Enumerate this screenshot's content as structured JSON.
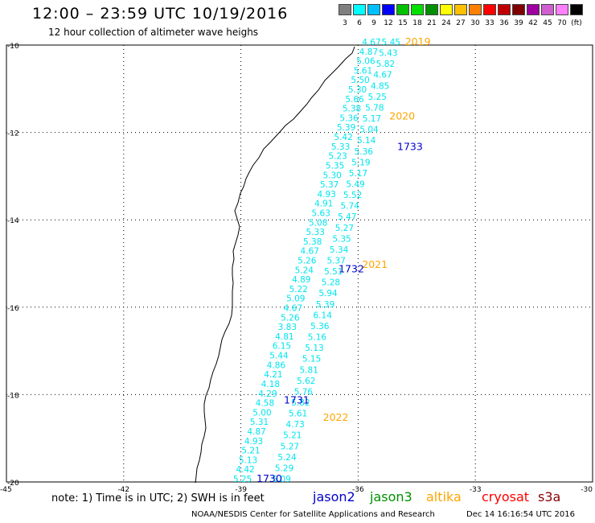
{
  "header": {
    "title": "12:00 – 23:59 UTC 10/19/2016",
    "subtitle": "12 hour collection of altimeter wave heighs"
  },
  "legend": {
    "colors": [
      "#808080",
      "#00ffff",
      "#00c0ff",
      "#0000ff",
      "#00c000",
      "#00e000",
      "#009000",
      "#ffff00",
      "#ffc000",
      "#ff8000",
      "#ff0000",
      "#c00000",
      "#800000",
      "#a000a0",
      "#d060d0",
      "#ff80ff",
      "#000000"
    ],
    "labels": [
      "3",
      "6",
      "9",
      "12",
      "15",
      "18",
      "21",
      "24",
      "27",
      "30",
      "33",
      "36",
      "39",
      "42",
      "45",
      "70",
      "(ft)"
    ]
  },
  "axes": {
    "lat_labels": [
      "-10",
      "-12",
      "-14",
      "-16",
      "-18",
      "-20"
    ],
    "lon_labels": [
      "-45",
      "-42",
      "-39",
      "-36",
      "-33",
      "-30"
    ]
  },
  "map_data": {
    "type": "altimeter_track_map",
    "lon_range": [
      -45,
      -30
    ],
    "lat_range": [
      -20,
      -10
    ],
    "track_color": "#00e5ee",
    "time_labels": [
      {
        "text": "2019",
        "color": "#ffa500",
        "lon": -34.8,
        "lat": -10.0
      },
      {
        "text": "2020",
        "color": "#ffa500",
        "lon": -35.2,
        "lat": -11.7
      },
      {
        "text": "1733",
        "color": "#0000cc",
        "lon": -35.0,
        "lat": -12.4
      },
      {
        "text": "2021",
        "color": "#ffa500",
        "lon": -35.9,
        "lat": -15.1
      },
      {
        "text": "1732",
        "color": "#0000cc",
        "lon": -36.5,
        "lat": -15.2
      },
      {
        "text": "1731",
        "color": "#0000cc",
        "lon": -37.9,
        "lat": -18.2
      },
      {
        "text": "2022",
        "color": "#ffa500",
        "lon": -36.9,
        "lat": -18.6
      },
      {
        "text": "1730",
        "color": "#0000cc",
        "lon": -38.6,
        "lat": -20.0
      }
    ],
    "track_a_start": {
      "lon": -35.9,
      "lat": -10.0
    },
    "track_a_end": {
      "lon": -39.2,
      "lat": -20.0
    },
    "track_a_values": [
      "4.67",
      "4.87",
      "5.06",
      "5.61",
      "5.50",
      "5.30",
      "5.66",
      "5.38",
      "5.36",
      "5.39",
      "5.42",
      "5.33",
      "5.23",
      "5.35",
      "5.30",
      "5.37",
      "4.93",
      "4.91",
      "5.63",
      "5.08",
      "5.33",
      "5.38",
      "4.67",
      "5.26",
      "5.24",
      "4.89",
      "5.22",
      "5.09",
      "4.67",
      "5.26",
      "3.83",
      "4.81",
      "6.15",
      "5.44",
      "4.86",
      "4.21",
      "4.18",
      "4.29",
      "4.58",
      "5.00",
      "5.31",
      "4.87",
      "4.93",
      "5.21",
      "5.13",
      "4.42",
      "5.25"
    ],
    "track_b_start": {
      "lon": -35.4,
      "lat": -10.0
    },
    "track_b_end": {
      "lon": -38.2,
      "lat": -20.0
    },
    "track_b_values": [
      "5.45",
      "5.43",
      "5.82",
      "4.67",
      "4.85",
      "5.25",
      "5.78",
      "5.17",
      "5.04",
      "5.14",
      "5.36",
      "5.19",
      "5.17",
      "5.49",
      "5.52",
      "5.74",
      "5.47",
      "5.27",
      "5.35",
      "5.34",
      "5.37",
      "5.51",
      "5.28",
      "5.94",
      "5.39",
      "6.14",
      "5.36",
      "5.16",
      "5.13",
      "5.15",
      "5.81",
      "5.62",
      "5.76",
      "5.82",
      "5.61",
      "4.73",
      "5.21",
      "5.27",
      "5.24",
      "5.29",
      "5.09"
    ]
  },
  "footer": {
    "note": "note:  1) Time is in UTC;  2) SWH is in feet",
    "satellites": [
      {
        "name": "jason2",
        "color": "#0000cc"
      },
      {
        "name": "jason3",
        "color": "#009000"
      },
      {
        "name": "altika",
        "color": "#ffa500"
      },
      {
        "name": "cryosat",
        "color": "#ff0000"
      },
      {
        "name": "s3a",
        "color": "#8b0000"
      }
    ],
    "credit": "NOAA/NESDIS Center for Satellite Applications and Research",
    "timestamp": "Dec 14 16:16:54 UTC 2016"
  }
}
